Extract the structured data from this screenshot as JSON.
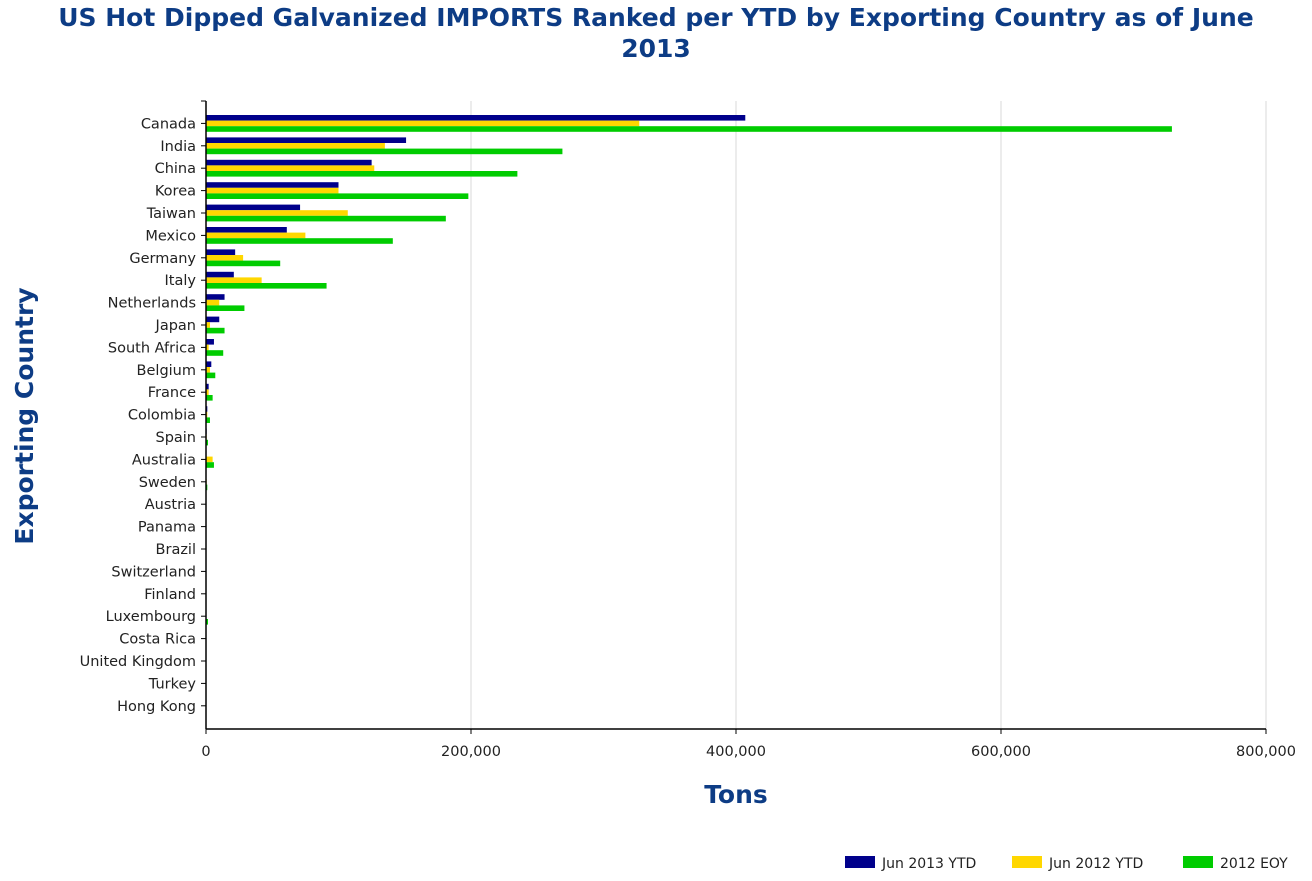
{
  "chart_data": {
    "type": "bar",
    "orientation": "horizontal",
    "title": "US Hot Dipped Galvanized IMPORTS Ranked per YTD by Exporting Country as of June 2013",
    "title_lines": [
      "US Hot Dipped Galvanized IMPORTS Ranked per YTD by Exporting Country as of June",
      "2013"
    ],
    "xlabel": "Tons",
    "ylabel": "Exporting Country",
    "xlim": [
      0,
      800000
    ],
    "xticks": [
      0,
      200000,
      400000,
      600000,
      800000
    ],
    "xtick_labels": [
      "0",
      "200,000",
      "400,000",
      "600,000",
      "800,000"
    ],
    "grid": "vertical",
    "legend_position": "bottom-right",
    "categories": [
      "Canada",
      "India",
      "China",
      "Korea",
      "Taiwan",
      "Mexico",
      "Germany",
      "Italy",
      "Netherlands",
      "Japan",
      "South Africa",
      "Belgium",
      "France",
      "Colombia",
      "Spain",
      "Australia",
      "Sweden",
      "Austria",
      "Panama",
      "Brazil",
      "Switzerland",
      "Finland",
      "Luxembourg",
      "Costa Rica",
      "United Kingdom",
      "Turkey",
      "Hong Kong"
    ],
    "series": [
      {
        "name": "Jun 2013 YTD",
        "color": "#00008b",
        "values": [
          407000,
          151000,
          125000,
          100000,
          71000,
          61000,
          22000,
          21000,
          14000,
          10000,
          6000,
          4000,
          2000,
          1000,
          500,
          400,
          300,
          100,
          50,
          40,
          30,
          20,
          20,
          10,
          10,
          5,
          5
        ]
      },
      {
        "name": "Jun 2012 YTD",
        "color": "#ffd700",
        "values": [
          327000,
          135000,
          127000,
          100000,
          107000,
          75000,
          28000,
          42000,
          10000,
          3000,
          2000,
          3000,
          2000,
          1000,
          500,
          5000,
          500,
          100,
          50,
          50,
          50,
          50,
          200,
          30,
          30,
          10,
          10
        ]
      },
      {
        "name": "2012 EOY",
        "color": "#00cc00",
        "values": [
          729000,
          269000,
          235000,
          198000,
          181000,
          141000,
          56000,
          91000,
          29000,
          14000,
          13000,
          7000,
          5000,
          3000,
          1500,
          6000,
          1000,
          200,
          100,
          100,
          100,
          100,
          1500,
          50,
          50,
          20,
          20
        ]
      }
    ]
  }
}
